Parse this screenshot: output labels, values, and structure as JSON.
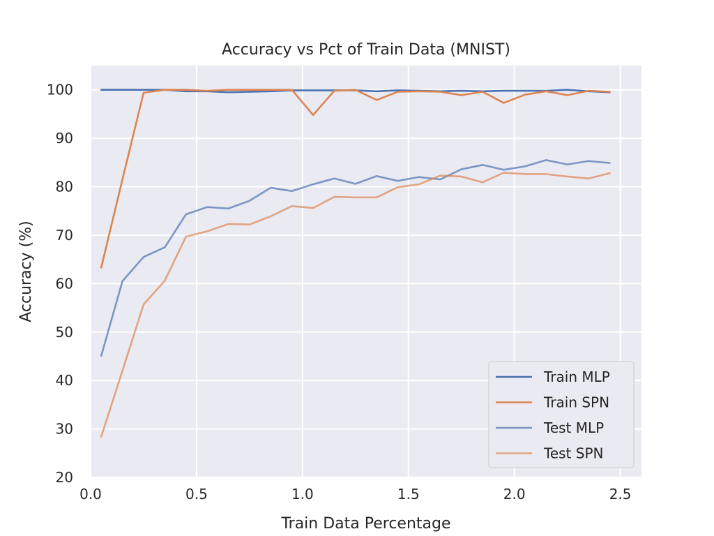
{
  "chart_data": {
    "type": "line",
    "title": "Accuracy vs Pct of Train Data (MNIST)",
    "xlabel": "Train Data Percentage",
    "ylabel": "Accuracy (%)",
    "xlim": [
      0.0,
      2.6
    ],
    "ylim": [
      20,
      105
    ],
    "xticks": [
      "0.0",
      "0.5",
      "1.0",
      "1.5",
      "2.0",
      "2.5"
    ],
    "yticks": [
      "20",
      "30",
      "40",
      "50",
      "60",
      "70",
      "80",
      "90",
      "100"
    ],
    "grid": true,
    "legend_position": "bottom-right",
    "x": [
      0.05,
      0.15,
      0.25,
      0.35,
      0.45,
      0.55,
      0.65,
      0.75,
      0.85,
      0.95,
      1.05,
      1.15,
      1.25,
      1.35,
      1.45,
      1.55,
      1.65,
      1.75,
      1.85,
      1.95,
      2.05,
      2.15,
      2.25,
      2.35,
      2.45
    ],
    "series": [
      {
        "name": "Train MLP",
        "color": "#4c72b0",
        "opacity": 1.0,
        "values": [
          100,
          100,
          100,
          100,
          99.7,
          99.7,
          99.5,
          99.6,
          99.7,
          99.9,
          99.9,
          99.9,
          99.9,
          99.7,
          99.9,
          99.8,
          99.7,
          99.8,
          99.7,
          99.8,
          99.8,
          99.8,
          100,
          99.7,
          99.5
        ]
      },
      {
        "name": "Train SPN",
        "color": "#dd8452",
        "opacity": 1.0,
        "values": [
          63.3,
          81.5,
          99.4,
          100,
          100,
          99.8,
          100,
          100,
          100,
          100,
          94.8,
          99.8,
          100,
          97.9,
          99.6,
          99.7,
          99.6,
          98.9,
          99.6,
          97.3,
          99.0,
          99.7,
          98.9,
          99.8,
          99.6
        ]
      },
      {
        "name": "Test MLP",
        "color": "#4c72b0",
        "opacity": 0.7,
        "values": [
          45.1,
          60.5,
          65.5,
          67.5,
          74.3,
          75.8,
          75.5,
          77.1,
          79.8,
          79.1,
          80.5,
          81.7,
          80.6,
          82.2,
          81.2,
          82.0,
          81.5,
          83.6,
          84.5,
          83.5,
          84.2,
          85.5,
          84.6,
          85.3,
          84.9
        ]
      },
      {
        "name": "Test SPN",
        "color": "#dd8452",
        "opacity": 0.7,
        "values": [
          28.4,
          42.0,
          55.7,
          60.6,
          69.7,
          70.8,
          72.3,
          72.2,
          73.9,
          76.0,
          75.6,
          77.9,
          77.8,
          77.8,
          79.9,
          80.5,
          82.3,
          82.1,
          80.9,
          82.9,
          82.6,
          82.6,
          82.1,
          81.7,
          82.8
        ]
      }
    ]
  }
}
